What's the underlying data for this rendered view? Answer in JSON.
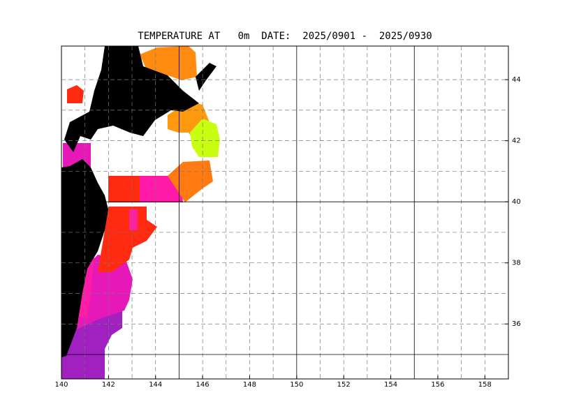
{
  "chart_data": {
    "type": "map",
    "title": "TEMPERATURE AT   0m  DATE:  2025/0901 -  2025/0930",
    "xlim": [
      140,
      159
    ],
    "ylim": [
      34.2,
      45.1
    ],
    "xticks": [
      140,
      142,
      144,
      146,
      148,
      150,
      152,
      154,
      156,
      158
    ],
    "yticks": [
      36,
      38,
      40,
      42,
      44
    ],
    "xgrid": [
      141,
      142,
      143,
      144,
      145,
      146,
      147,
      148,
      149,
      150,
      151,
      152,
      153,
      154,
      155,
      156,
      157,
      158
    ],
    "ygrid": [
      35,
      36,
      37,
      38,
      39,
      40,
      41,
      42,
      43,
      44
    ],
    "major_every": 5
  }
}
